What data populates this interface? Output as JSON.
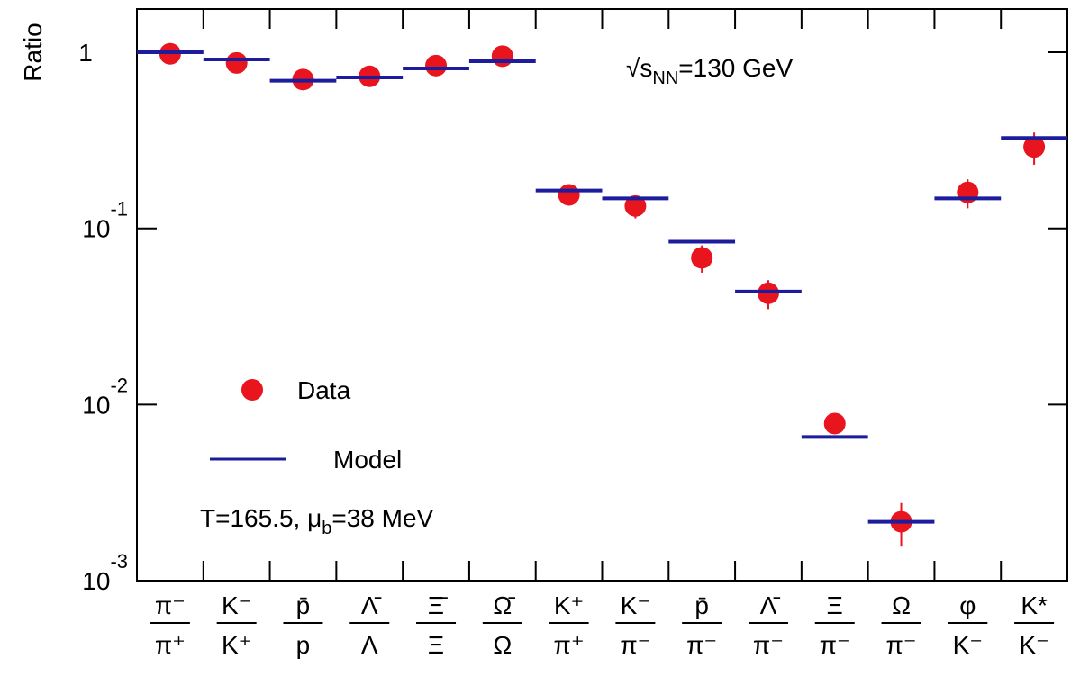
{
  "chart_data": {
    "type": "scatter",
    "y_label": "Ratio",
    "ylog": true,
    "categories": [
      [
        "π⁻",
        "π⁺"
      ],
      [
        "K⁻",
        "K⁺"
      ],
      [
        "p̄",
        "p"
      ],
      [
        "Λ̄",
        "Λ"
      ],
      [
        "Ξ̄",
        "Ξ"
      ],
      [
        "Ω̄",
        "Ω"
      ],
      [
        "K⁺",
        "π⁺"
      ],
      [
        "K⁻",
        "π⁻"
      ],
      [
        "p̄",
        "π⁻"
      ],
      [
        "Λ̄",
        "π⁻"
      ],
      [
        "Ξ",
        "π⁻"
      ],
      [
        "Ω",
        "π⁻"
      ],
      [
        "φ",
        "K⁻"
      ],
      [
        "K*",
        "K⁻"
      ]
    ],
    "series": [
      {
        "name": "Data",
        "color": "#e8141e",
        "values": [
          0.98,
          0.87,
          0.7,
          0.73,
          0.84,
          0.95,
          0.155,
          0.134,
          0.068,
          0.0428,
          0.0078,
          0.00216,
          0.16,
          0.29
        ],
        "errors": [
          0.1,
          0.1,
          0.08,
          0.08,
          0.1,
          0.1,
          0.02,
          0.02,
          0.012,
          0.008,
          0.0008,
          0.0006,
          0.03,
          0.06
        ]
      },
      {
        "name": "Model",
        "color": "#1c1c9c",
        "values": [
          1.0,
          0.91,
          0.69,
          0.72,
          0.81,
          0.89,
          0.164,
          0.148,
          0.084,
          0.0438,
          0.00654,
          0.00216,
          0.148,
          0.326
        ]
      }
    ],
    "ylim": [
      0.001,
      1.76
    ],
    "yticks": [
      1,
      {
        "value": 0.1,
        "label": "10",
        "exponent": "-1"
      },
      {
        "value": 0.01,
        "label": "10",
        "exponent": "-2"
      },
      {
        "value": 0.001,
        "label": "10",
        "exponent": "-3"
      }
    ],
    "energy_label": {
      "prefix": "√s",
      "subscript": "NN",
      "suffix": "=130 GeV"
    },
    "parameters_label": {
      "prefix": "T=165.5, μ",
      "subscript": "b",
      "suffix": "=38 MeV"
    }
  }
}
